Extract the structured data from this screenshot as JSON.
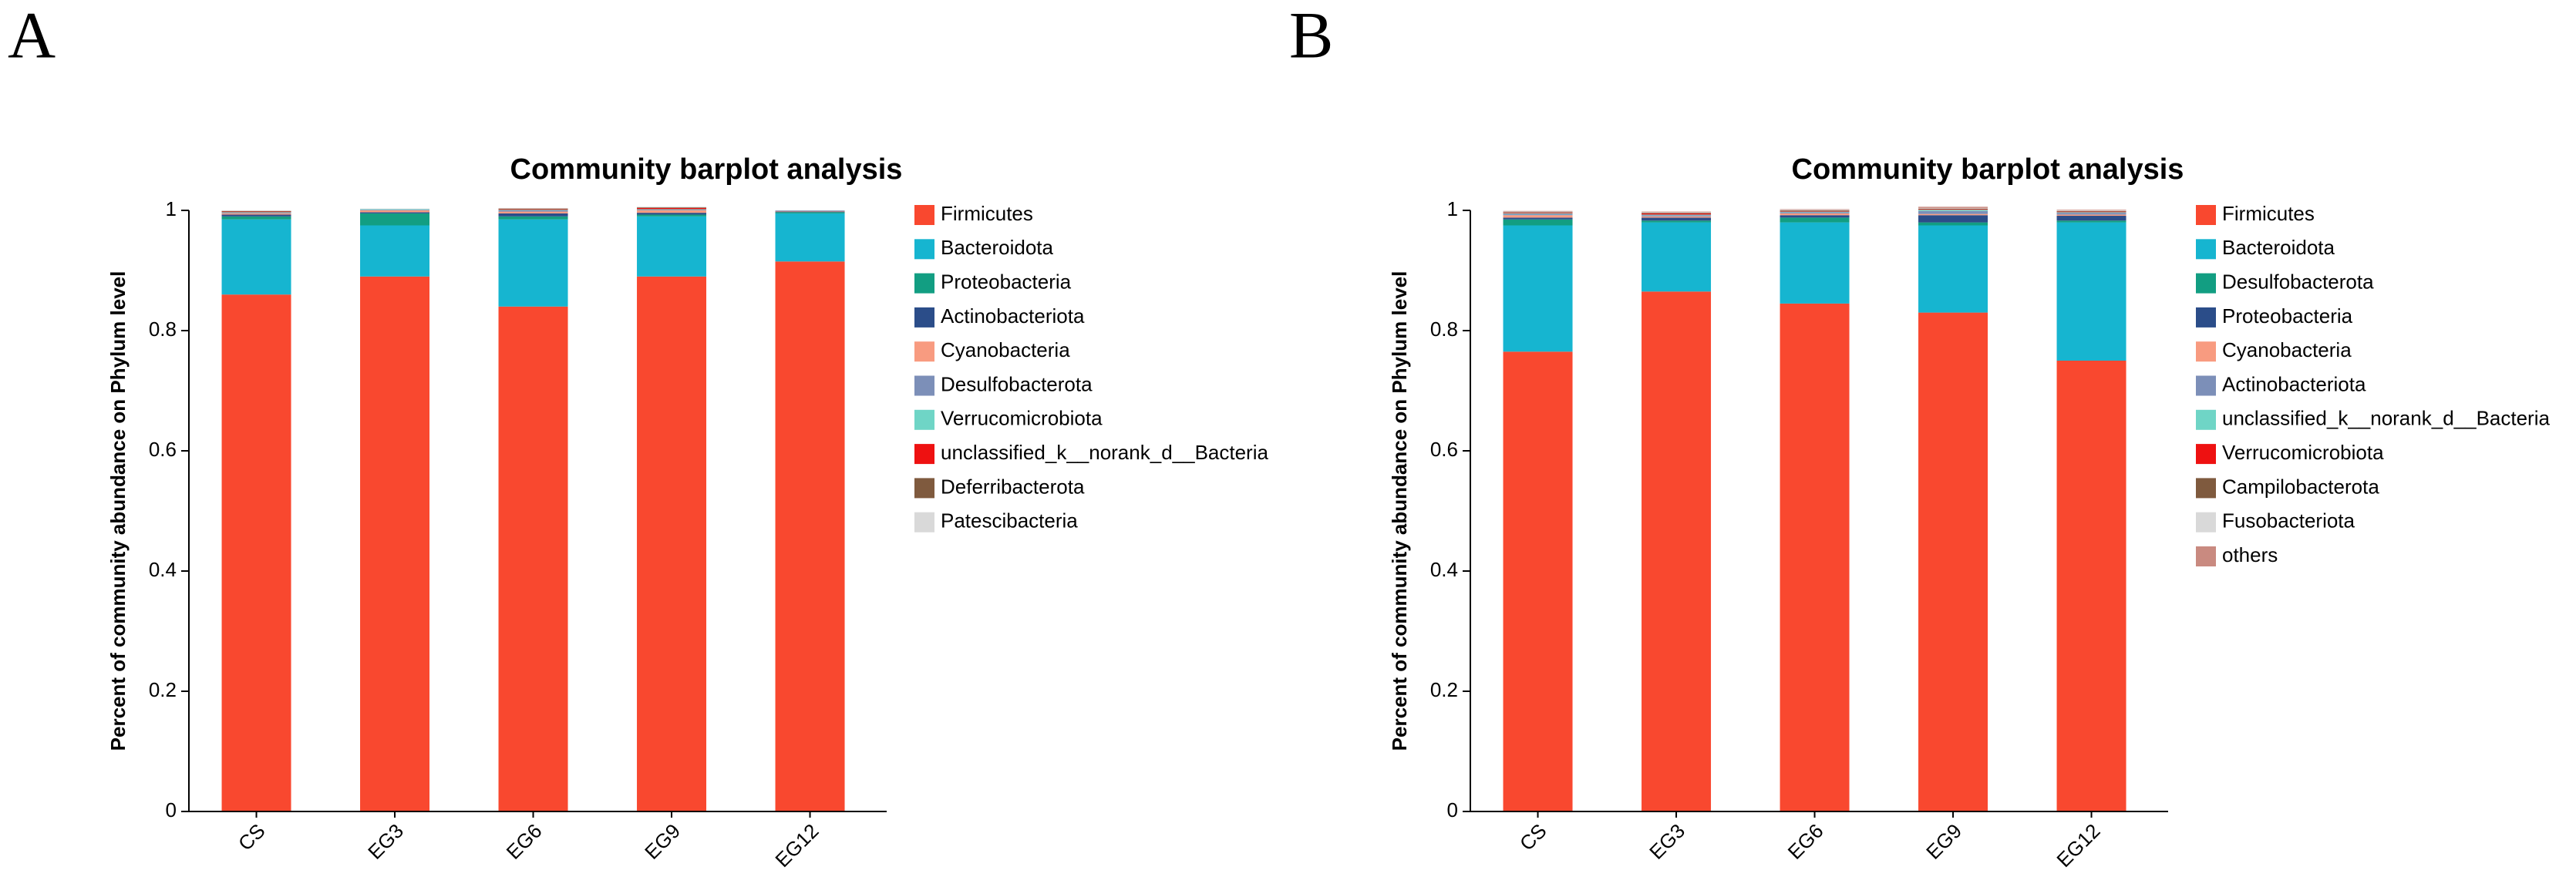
{
  "chart_data": [
    {
      "type": "stacked_bar",
      "panel_label": "A",
      "title": "Community barplot analysis",
      "y_label": "Percent of community abundance on Phylum level",
      "categories": [
        "CS",
        "EG3",
        "EG6",
        "EG9",
        "EG12"
      ],
      "ylim": [
        0,
        1
      ],
      "yticks": [
        0,
        0.2,
        0.4,
        0.6,
        0.8,
        1
      ],
      "series": [
        {
          "name": "Firmicutes",
          "color": "#f9482f",
          "values": [
            0.86,
            0.89,
            0.84,
            0.89,
            0.915
          ]
        },
        {
          "name": "Bacteroidota",
          "color": "#16b5d0",
          "values": [
            0.125,
            0.085,
            0.145,
            0.1,
            0.08
          ]
        },
        {
          "name": "Proteobacteria",
          "color": "#129e82",
          "values": [
            0.005,
            0.02,
            0.005,
            0.003,
            0.002
          ]
        },
        {
          "name": "Actinobacteriota",
          "color": "#2b4d89",
          "values": [
            0.003,
            0.002,
            0.005,
            0.003,
            0.001
          ]
        },
        {
          "name": "Cyanobacteria",
          "color": "#f89b80",
          "values": [
            0.002,
            0.003,
            0.003,
            0.004,
            0.001
          ]
        },
        {
          "name": "Desulfobacterota",
          "color": "#7c8fb8",
          "values": [
            0.001,
            0.001,
            0.002,
            0.001,
            0.001
          ]
        },
        {
          "name": "Verrucomicrobiota",
          "color": "#6fd5c6",
          "values": [
            0.001,
            0.001,
            0.001,
            0.001,
            0.0
          ]
        },
        {
          "name": "unclassified_k__norank_d__Bacteria",
          "color": "#ee1111",
          "values": [
            0.001,
            0.0,
            0.001,
            0.002,
            0.0
          ]
        },
        {
          "name": "Deferribacterota",
          "color": "#7f5a3e",
          "values": [
            0.001,
            0.0,
            0.001,
            0.001,
            0.0
          ]
        },
        {
          "name": "Patescibacteria",
          "color": "#d9d9d9",
          "values": [
            0.001,
            0.001,
            0.001,
            0.001,
            0.0
          ]
        }
      ]
    },
    {
      "type": "stacked_bar",
      "panel_label": "B",
      "title": "Community barplot analysis",
      "y_label": "Percent of community abundance on Phylum level",
      "categories": [
        "CS",
        "EG3",
        "EG6",
        "EG9",
        "EG12"
      ],
      "ylim": [
        0,
        1
      ],
      "yticks": [
        0,
        0.2,
        0.4,
        0.6,
        0.8,
        1
      ],
      "series": [
        {
          "name": "Firmicutes",
          "color": "#f9482f",
          "values": [
            0.765,
            0.865,
            0.845,
            0.83,
            0.75
          ]
        },
        {
          "name": "Bacteroidota",
          "color": "#16b5d0",
          "values": [
            0.21,
            0.115,
            0.135,
            0.145,
            0.23
          ]
        },
        {
          "name": "Desulfobacterota",
          "color": "#129e82",
          "values": [
            0.01,
            0.003,
            0.008,
            0.005,
            0.003
          ]
        },
        {
          "name": "Proteobacteria",
          "color": "#2b4d89",
          "values": [
            0.003,
            0.005,
            0.004,
            0.012,
            0.008
          ]
        },
        {
          "name": "Cyanobacteria",
          "color": "#f89b80",
          "values": [
            0.004,
            0.002,
            0.003,
            0.002,
            0.002
          ]
        },
        {
          "name": "Actinobacteriota",
          "color": "#7c8fb8",
          "values": [
            0.002,
            0.002,
            0.002,
            0.005,
            0.003
          ]
        },
        {
          "name": "unclassified_k__norank_d__Bacteria",
          "color": "#6fd5c6",
          "values": [
            0.001,
            0.001,
            0.001,
            0.002,
            0.001
          ]
        },
        {
          "name": "Verrucomicrobiota",
          "color": "#ee1111",
          "values": [
            0.001,
            0.002,
            0.001,
            0.001,
            0.001
          ]
        },
        {
          "name": "Campilobacterota",
          "color": "#7f5a3e",
          "values": [
            0.001,
            0.001,
            0.001,
            0.001,
            0.001
          ]
        },
        {
          "name": "Fusobacteriota",
          "color": "#d9d9d9",
          "values": [
            0.001,
            0.001,
            0.001,
            0.001,
            0.001
          ]
        },
        {
          "name": "others",
          "color": "#c98a80",
          "values": [
            0.001,
            0.001,
            0.001,
            0.002,
            0.001
          ]
        }
      ]
    }
  ]
}
